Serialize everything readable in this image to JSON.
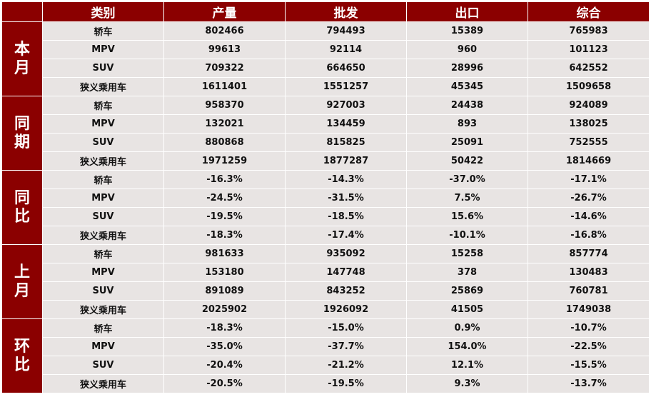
{
  "table": {
    "headers": [
      "类别",
      "产量",
      "批发",
      "出口",
      "综合"
    ],
    "groups": [
      {
        "label": "本月",
        "rows": [
          {
            "cat": "轿车",
            "vals": [
              "802466",
              "794493",
              "15389",
              "765983"
            ]
          },
          {
            "cat": "MPV",
            "vals": [
              "99613",
              "92114",
              "960",
              "101123"
            ]
          },
          {
            "cat": "SUV",
            "vals": [
              "709322",
              "664650",
              "28996",
              "642552"
            ]
          },
          {
            "cat": "狭义乘用车",
            "vals": [
              "1611401",
              "1551257",
              "45345",
              "1509658"
            ]
          }
        ]
      },
      {
        "label": "同期",
        "rows": [
          {
            "cat": "轿车",
            "vals": [
              "958370",
              "927003",
              "24438",
              "924089"
            ]
          },
          {
            "cat": "MPV",
            "vals": [
              "132021",
              "134459",
              "893",
              "138025"
            ]
          },
          {
            "cat": "SUV",
            "vals": [
              "880868",
              "815825",
              "25091",
              "752555"
            ]
          },
          {
            "cat": "狭义乘用车",
            "vals": [
              "1971259",
              "1877287",
              "50422",
              "1814669"
            ]
          }
        ]
      },
      {
        "label": "同比",
        "rows": [
          {
            "cat": "轿车",
            "vals": [
              "-16.3%",
              "-14.3%",
              "-37.0%",
              "-17.1%"
            ]
          },
          {
            "cat": "MPV",
            "vals": [
              "-24.5%",
              "-31.5%",
              "7.5%",
              "-26.7%"
            ]
          },
          {
            "cat": "SUV",
            "vals": [
              "-19.5%",
              "-18.5%",
              "15.6%",
              "-14.6%"
            ]
          },
          {
            "cat": "狭义乘用车",
            "vals": [
              "-18.3%",
              "-17.4%",
              "-10.1%",
              "-16.8%"
            ]
          }
        ]
      },
      {
        "label": "上月",
        "rows": [
          {
            "cat": "轿车",
            "vals": [
              "981633",
              "935092",
              "15258",
              "857774"
            ]
          },
          {
            "cat": "MPV",
            "vals": [
              "153180",
              "147748",
              "378",
              "130483"
            ]
          },
          {
            "cat": "SUV",
            "vals": [
              "891089",
              "843252",
              "25869",
              "760781"
            ]
          },
          {
            "cat": "狭义乘用车",
            "vals": [
              "2025902",
              "1926092",
              "41505",
              "1749038"
            ]
          }
        ]
      },
      {
        "label": "环比",
        "rows": [
          {
            "cat": "轿车",
            "vals": [
              "-18.3%",
              "-15.0%",
              "0.9%",
              "-10.7%"
            ]
          },
          {
            "cat": "MPV",
            "vals": [
              "-35.0%",
              "-37.7%",
              "154.0%",
              "-22.5%"
            ]
          },
          {
            "cat": "SUV",
            "vals": [
              "-20.4%",
              "-21.2%",
              "12.1%",
              "-15.5%"
            ]
          },
          {
            "cat": "狭义乘用车",
            "vals": [
              "-20.5%",
              "-19.5%",
              "9.3%",
              "-13.7%"
            ]
          }
        ]
      }
    ]
  },
  "colors": {
    "header_bg": "#8b0000",
    "cell_bg": "#e8e4e3",
    "header_text": "#ffffff"
  }
}
